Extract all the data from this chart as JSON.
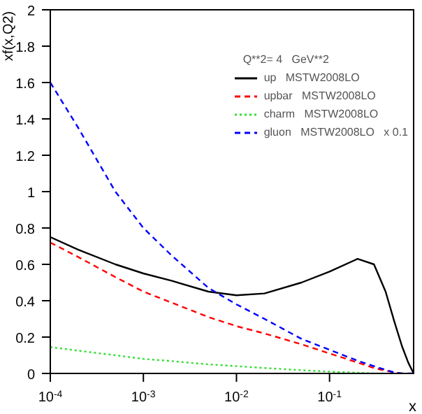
{
  "chart_data": {
    "type": "line",
    "xlabel": "x",
    "ylabel": "xf(x,Q2)",
    "legend_title": "Q**2= 4   GeV**2",
    "log": "x",
    "xlim": [
      0.0001,
      0.8
    ],
    "xticks": [
      {
        "value": 0.0001,
        "label": "10$^{-4}$"
      },
      {
        "value": 0.001,
        "label": "10$^{-3}$"
      },
      {
        "value": 0.01,
        "label": "10$^{-2}$"
      },
      {
        "value": 0.1,
        "label": "10$^{-1}$"
      }
    ],
    "ylim": [
      0,
      2
    ],
    "yticks": [
      0,
      0.2,
      0.4,
      0.6,
      0.8,
      1,
      1.2,
      1.4,
      1.6,
      1.8,
      2
    ],
    "grid": false,
    "legend": "top right",
    "marker": "none",
    "x": [
      0.0001,
      0.0002,
      0.0005,
      0.001,
      0.002,
      0.005,
      0.01,
      0.02,
      0.05,
      0.1,
      0.2,
      0.3,
      0.4,
      0.5,
      0.6,
      0.7,
      0.8
    ],
    "series": [
      {
        "name": "up   MSTW2008LO",
        "color": "#000000",
        "line_style": "solid",
        "values": [
          0.75,
          0.68,
          0.6,
          0.55,
          0.51,
          0.45,
          0.43,
          0.44,
          0.5,
          0.56,
          0.63,
          0.6,
          0.45,
          0.28,
          0.15,
          0.06,
          0
        ]
      },
      {
        "name": "upbar   MSTW2008LO",
        "color": "#ff0000",
        "line_style": "dashed",
        "values": [
          0.72,
          0.64,
          0.53,
          0.45,
          0.39,
          0.31,
          0.26,
          0.22,
          0.16,
          0.11,
          0.06,
          0.03,
          0.015,
          0.005,
          0,
          null,
          null
        ]
      },
      {
        "name": "charm   MSTW2008LO",
        "color": "#33dd33",
        "line_style": "dotted",
        "values": [
          0.145,
          0.125,
          0.1,
          0.08,
          0.068,
          0.05,
          0.04,
          0.03,
          0.018,
          0.01,
          0.004,
          0,
          0,
          null,
          null,
          null,
          null
        ]
      },
      {
        "name": "gluon   MSTW2008LO   x 0.1",
        "color": "#0000ff",
        "line_style": "dashed",
        "values": [
          1.6,
          1.35,
          1.0,
          0.8,
          0.65,
          0.47,
          0.38,
          0.3,
          0.19,
          0.13,
          0.07,
          0.04,
          0.02,
          0.005,
          0,
          0,
          0
        ]
      }
    ]
  }
}
